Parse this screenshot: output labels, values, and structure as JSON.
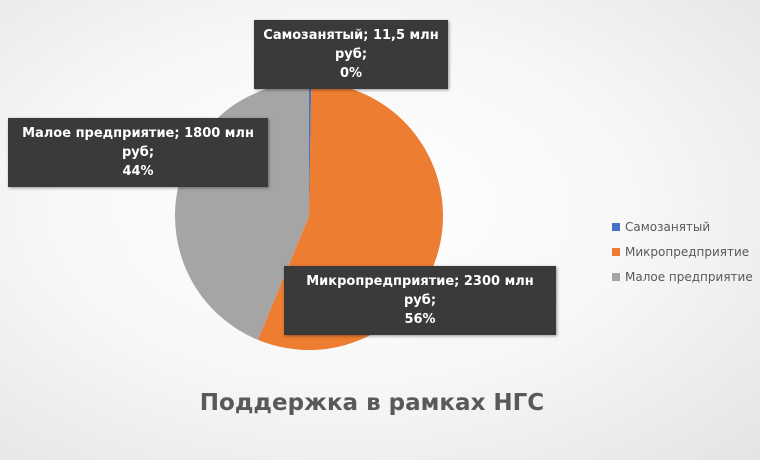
{
  "chart_data": {
    "type": "pie",
    "title": "Поддержка в рамках НГС",
    "start_angle": "top",
    "direction": "clockwise",
    "slices": [
      {
        "name": "Самозанятый",
        "value": 11.5,
        "color": "#4472C4",
        "label": "Самозанятый; 11,5 млн руб; 0%"
      },
      {
        "name": "Микропредприятие",
        "value": 2300,
        "color": "#ED7D31",
        "label": "Микропредприятие; 2300 млн руб; 56%"
      },
      {
        "name": "Малое предприятие",
        "value": 1800,
        "color": "#A5A5A5",
        "label": "Малое предприятие; 1800 млн руб; 44%"
      }
    ],
    "data_labels": [
      {
        "line1": "Самозанятый; 11,5 млн руб;",
        "line2": "0%"
      },
      {
        "line1": "Микропредприятие; 2300 млн руб;",
        "line2": "56%"
      },
      {
        "line1": "Малое предприятие; 1800 млн руб;",
        "line2": "44%"
      }
    ],
    "legend_position": "right"
  }
}
